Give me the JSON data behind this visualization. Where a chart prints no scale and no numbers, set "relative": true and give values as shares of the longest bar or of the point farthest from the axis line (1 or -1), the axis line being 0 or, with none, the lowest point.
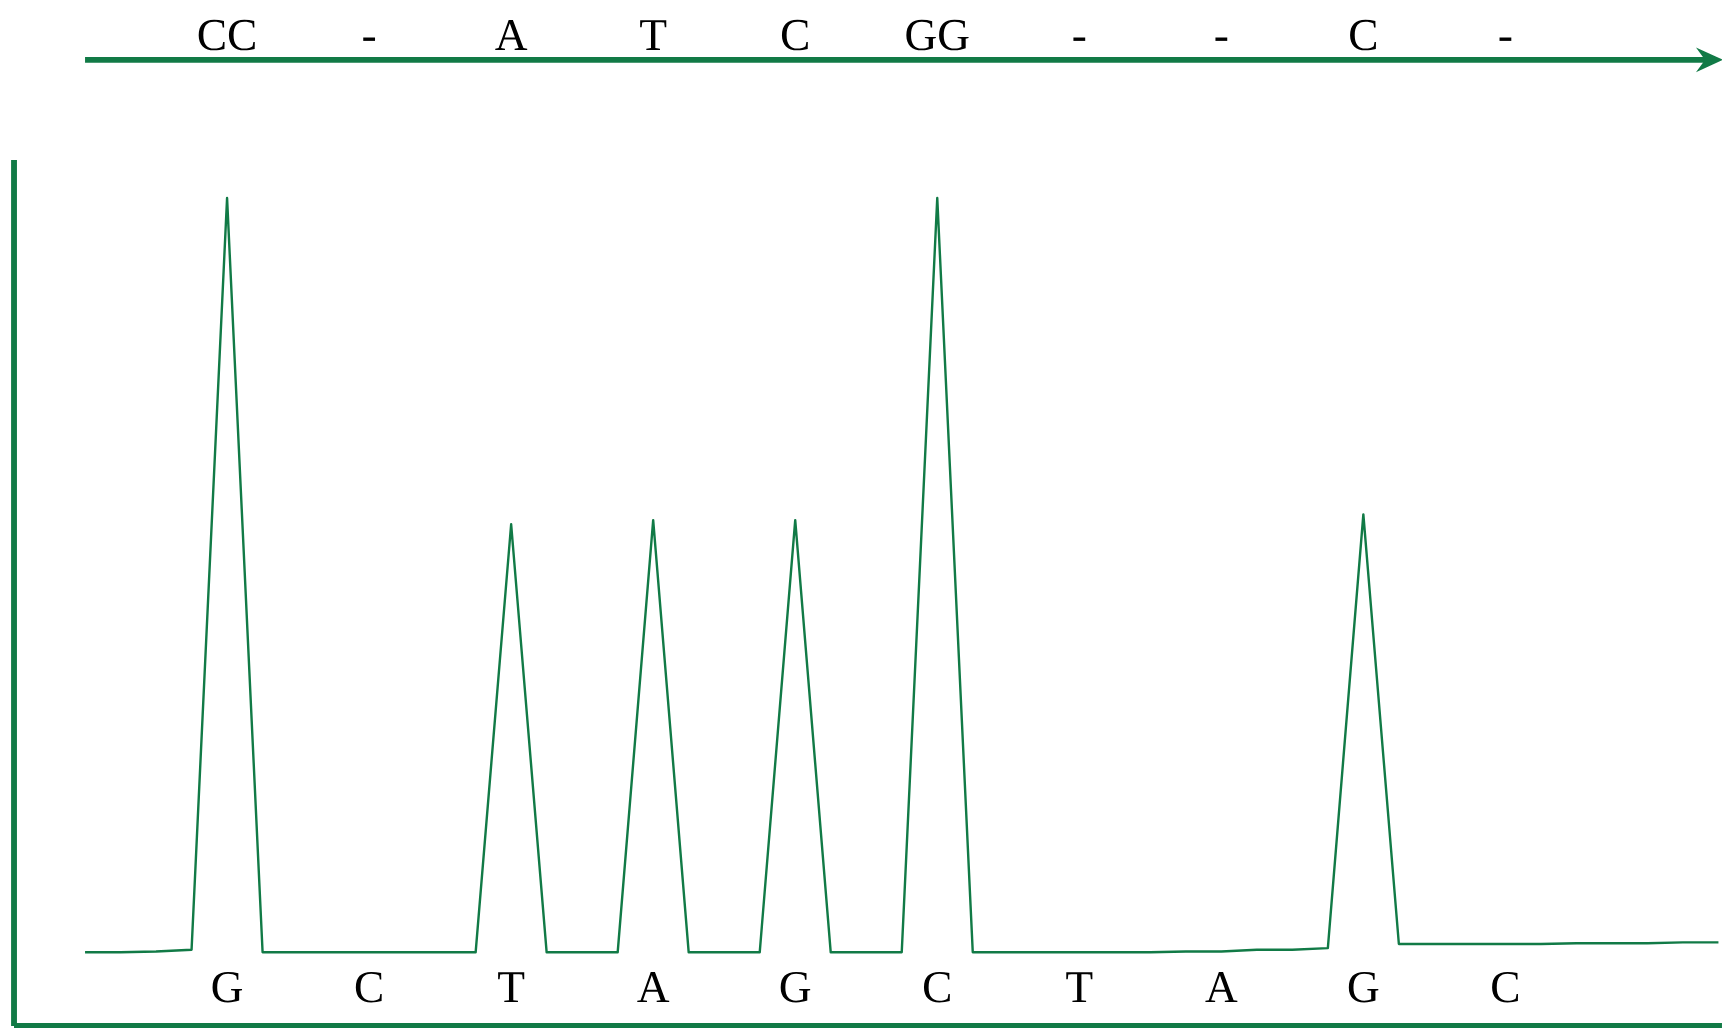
{
  "chart_data": {
    "type": "line",
    "relative": true,
    "categories": [
      null,
      null,
      null,
      null,
      "G",
      null,
      null,
      null,
      "C",
      null,
      null,
      null,
      "T",
      null,
      null,
      null,
      "A",
      null,
      null,
      null,
      "G",
      null,
      null,
      null,
      "C",
      null,
      null,
      null,
      "T",
      null,
      null,
      null,
      "A",
      null,
      null,
      null,
      "G",
      null,
      null,
      null,
      "C",
      null,
      null,
      null,
      null,
      null,
      null
    ],
    "annotations": [
      "CC",
      "-",
      "A",
      "T",
      "C",
      "GG",
      "-",
      "-",
      "C",
      "-"
    ],
    "series": [
      {
        "color": "#117a46",
        "values": [
          0.089,
          0.089,
          0.09,
          0.092,
          1,
          0.089,
          0.089,
          0.089,
          0.089,
          0.089,
          0.089,
          0.089,
          0.606,
          0.089,
          0.089,
          0.089,
          0.611,
          0.089,
          0.089,
          0.089,
          0.611,
          0.089,
          0.089,
          0.089,
          1,
          0.089,
          0.089,
          0.089,
          0.089,
          0.089,
          0.089,
          0.09,
          0.09,
          0.092,
          0.092,
          0.094,
          0.618,
          0.099,
          0.099,
          0.099,
          0.099,
          0.099,
          0.1,
          0.1,
          0.1,
          0.101,
          0.101
        ]
      }
    ]
  }
}
